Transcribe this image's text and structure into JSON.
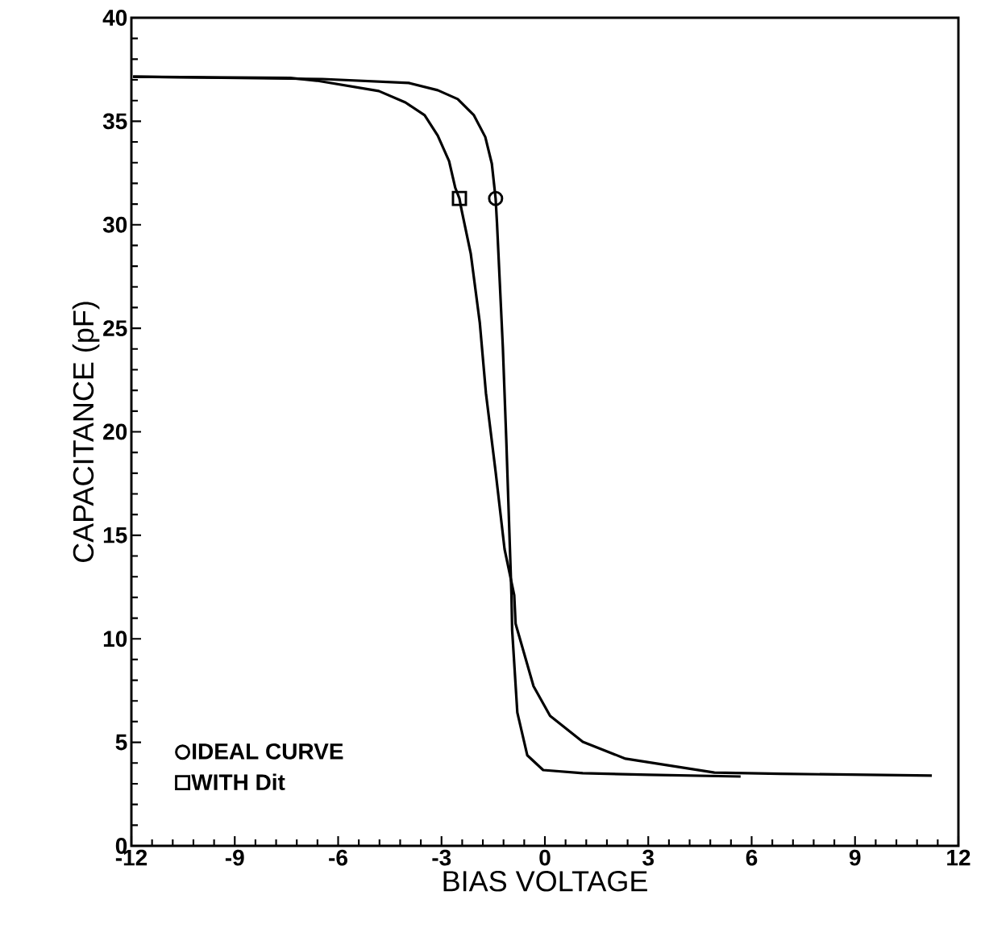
{
  "chart_data": {
    "type": "line",
    "xlabel": "BIAS  VOLTAGE",
    "ylabel": "CAPACITANCE  (pF)",
    "xlim": [
      -12,
      12
    ],
    "ylim": [
      0,
      40
    ],
    "xticks": [
      -12,
      -9,
      -6,
      -3,
      0,
      3,
      6,
      9,
      12
    ],
    "yticks": [
      0,
      5,
      10,
      15,
      20,
      25,
      30,
      35,
      40
    ],
    "grid": false,
    "legend": "bottom left",
    "line_style": "solid",
    "series": [
      {
        "color": "#000000",
        "x": [
          -11.95,
          -6.46,
          -3.95,
          -3.11,
          -2.53,
          -2.06,
          -1.73,
          -1.54,
          -1.43,
          -1.39,
          -1.22,
          -1.12,
          -1.03,
          -0.97,
          -0.95,
          -0.8,
          -0.51,
          -0.05,
          1.1,
          3.02,
          5.68
        ],
        "values": [
          37.15,
          37.04,
          36.85,
          36.5,
          36.07,
          35.29,
          34.24,
          32.95,
          31.27,
          30.07,
          24.07,
          19.59,
          15.11,
          12.11,
          10.41,
          6.44,
          4.37,
          3.66,
          3.51,
          3.43,
          3.35
        ]
      },
      {
        "color": "#000000",
        "x": [
          -11.95,
          -7.39,
          -6.62,
          -4.82,
          -4.05,
          -3.49,
          -3.11,
          -2.78,
          -2.6,
          -2.48,
          -2.43,
          -2.15,
          -1.89,
          -1.71,
          -1.43,
          -1.17,
          -0.89,
          -0.85,
          -0.33,
          0.15,
          1.1,
          2.34,
          4.92,
          6.83,
          11.23
        ],
        "values": [
          37.15,
          37.09,
          36.96,
          36.46,
          35.91,
          35.29,
          34.31,
          33.07,
          31.78,
          31.27,
          30.81,
          28.59,
          25.28,
          21.85,
          18.07,
          14.33,
          12.11,
          10.73,
          7.71,
          6.28,
          5.02,
          4.21,
          3.54,
          3.48,
          3.39
        ]
      },
      {
        "type": "scatter",
        "name": "IDEAL  CURVE",
        "color": "#000000",
        "marker": "circle",
        "x": [
          -1.43
        ],
        "values": [
          31.27
        ]
      },
      {
        "type": "scatter",
        "name": "WITH  Dit",
        "color": "#000000",
        "marker": "square",
        "x": [
          -2.48
        ],
        "values": [
          31.27
        ]
      }
    ]
  }
}
